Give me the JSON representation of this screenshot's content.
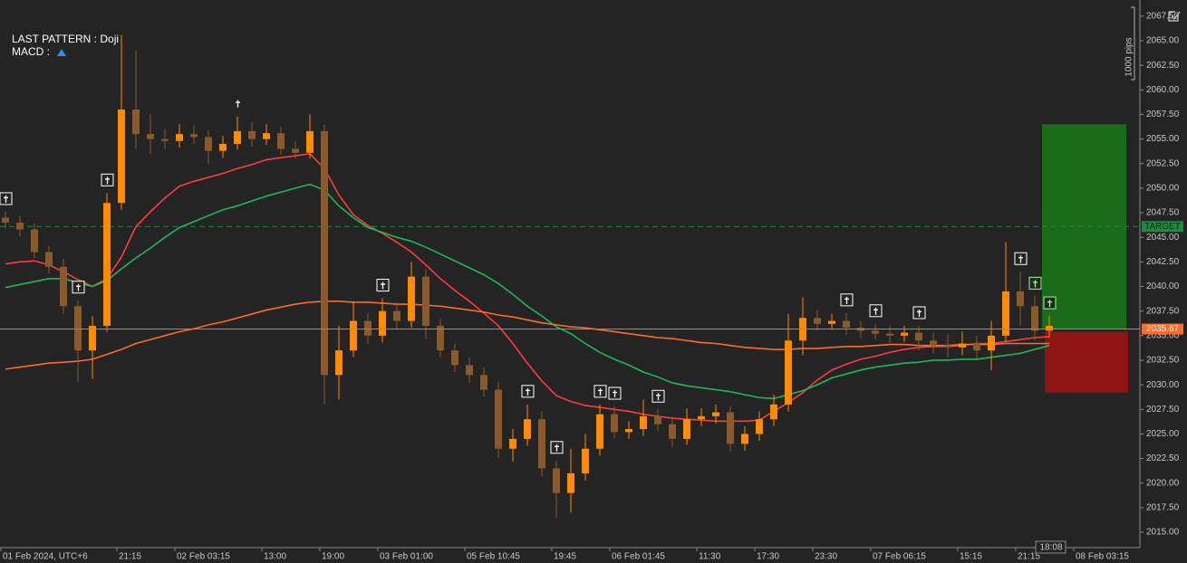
{
  "chart_data": {
    "type": "candlestick",
    "info_lines": [
      "LAST PATTERN : Doji",
      "MACD :"
    ],
    "scale_note": "1000 pips",
    "time_label": "18:08",
    "categories": [
      "01 Feb 2024, UTC+6",
      null,
      null,
      null,
      null,
      null,
      null,
      null,
      "21:15",
      null,
      null,
      null,
      "02 Feb 03:15",
      null,
      null,
      null,
      null,
      null,
      "13:00",
      null,
      null,
      null,
      "19:00",
      null,
      null,
      null,
      "03 Feb 01:00",
      null,
      null,
      null,
      null,
      null,
      "05 Feb 10:45",
      null,
      null,
      null,
      null,
      null,
      "19:45",
      null,
      null,
      null,
      "06 Feb 01:45",
      null,
      null,
      null,
      null,
      null,
      "11:30",
      null,
      null,
      null,
      "17:30",
      null,
      null,
      null,
      "23:30",
      null,
      null,
      null,
      "07 Feb 06:15",
      null,
      null,
      null,
      null,
      null,
      "15:15",
      null,
      null,
      null,
      "21:15",
      null,
      null,
      null,
      "08 Feb 03:15"
    ],
    "open": [
      2047.0,
      2046.5,
      2045.8,
      2043.5,
      2042.0,
      2038.0,
      2033.5,
      2036.0,
      2048.5,
      2058.0,
      2055.5,
      2055.0,
      2054.8,
      2055.5,
      2055.2,
      2053.8,
      2054.5,
      2055.8,
      2055.0,
      2055.6,
      2054.0,
      2053.6,
      2055.8,
      2031.0,
      2033.5,
      2036.5,
      2035.0,
      2037.5,
      2036.5,
      2041.0,
      2036.0,
      2033.5,
      2032.0,
      2031.0,
      2029.5,
      2023.5,
      2024.5,
      2026.5,
      2021.5,
      2019.0,
      2021.0,
      2023.5,
      2027.0,
      2025.2,
      2025.5,
      2026.8,
      2026.0,
      2024.5,
      2026.5,
      2026.8,
      2027.2,
      2024.0,
      2025.0,
      2026.5,
      2028.0,
      2034.5,
      2036.8,
      2036.2,
      2036.5,
      2035.8,
      2035.5,
      2035.2,
      2035.0,
      2035.3,
      2034.5,
      2034.0,
      2033.8,
      2034.2,
      2033.5,
      2035.0,
      2039.5,
      2038.0,
      2035.5,
      null,
      null
    ],
    "high": [
      2047.6,
      2047.2,
      2046.4,
      2044.1,
      2042.8,
      2038.6,
      2037.0,
      2049.5,
      2065.6,
      2064.0,
      2057.5,
      2056.0,
      2056.5,
      2056.4,
      2055.9,
      2055.3,
      2057.3,
      2056.7,
      2056.5,
      2056.2,
      2054.8,
      2057.5,
      2056.5,
      2036.0,
      2038.5,
      2037.3,
      2038.8,
      2038.4,
      2042.5,
      2041.8,
      2036.7,
      2034.2,
      2032.8,
      2031.8,
      2030.3,
      2025.5,
      2028.0,
      2027.3,
      2022.3,
      2023.5,
      2025.0,
      2028.0,
      2027.8,
      2026.3,
      2028.5,
      2027.5,
      2026.8,
      2027.6,
      2027.6,
      2028.0,
      2027.8,
      2025.8,
      2027.3,
      2029.0,
      2037.2,
      2038.9,
      2037.6,
      2037.2,
      2037.3,
      2036.5,
      2036.2,
      2036.0,
      2036.0,
      2036.0,
      2035.3,
      2035.2,
      2035.4,
      2035.0,
      2036.5,
      2044.5,
      2041.5,
      2039.0,
      2037.0,
      null,
      null
    ],
    "low": [
      2045.9,
      2045.1,
      2042.9,
      2041.3,
      2037.2,
      2030.3,
      2030.6,
      2035.4,
      2047.8,
      2054.0,
      2053.5,
      2054.0,
      2054.1,
      2054.5,
      2052.5,
      2053.1,
      2053.9,
      2054.3,
      2054.4,
      2053.4,
      2053.0,
      2053.0,
      2028.0,
      2028.5,
      2032.8,
      2034.2,
      2034.3,
      2035.7,
      2035.8,
      2034.6,
      2032.8,
      2031.3,
      2030.2,
      2028.8,
      2022.6,
      2022.2,
      2023.8,
      2020.7,
      2016.5,
      2017.0,
      2020.3,
      2022.8,
      2024.6,
      2024.5,
      2024.8,
      2025.3,
      2023.7,
      2023.9,
      2025.8,
      2026.1,
      2023.2,
      2023.3,
      2024.3,
      2025.8,
      2027.3,
      2033.0,
      2035.5,
      2035.6,
      2035.1,
      2034.8,
      2034.6,
      2034.3,
      2034.4,
      2033.5,
      2033.2,
      2032.8,
      2033.0,
      2032.5,
      2031.5,
      2034.3,
      2036.0,
      2034.5,
      2034.8,
      null,
      null
    ],
    "close": [
      2046.5,
      2045.8,
      2043.5,
      2042.0,
      2038.0,
      2033.5,
      2036.0,
      2048.5,
      2058.0,
      2055.5,
      2055.0,
      2054.8,
      2055.5,
      2055.2,
      2053.8,
      2054.5,
      2055.8,
      2055.0,
      2055.6,
      2054.0,
      2053.6,
      2055.8,
      2031.0,
      2033.5,
      2036.5,
      2035.0,
      2037.5,
      2036.5,
      2041.0,
      2036.0,
      2033.5,
      2032.0,
      2031.0,
      2029.5,
      2023.5,
      2024.5,
      2026.5,
      2021.5,
      2019.0,
      2021.0,
      2023.5,
      2027.0,
      2025.2,
      2025.5,
      2026.8,
      2026.0,
      2024.5,
      2026.5,
      2026.8,
      2027.2,
      2024.0,
      2025.0,
      2026.5,
      2028.0,
      2034.5,
      2036.8,
      2036.2,
      2036.5,
      2035.8,
      2035.5,
      2035.2,
      2035.0,
      2035.3,
      2034.5,
      2034.0,
      2033.8,
      2034.2,
      2033.5,
      2035.0,
      2039.5,
      2038.0,
      2035.5,
      2036.0,
      null,
      null
    ],
    "up_color": "#ff8c00",
    "down_color": "#8b5a2b",
    "moving_averages": [
      {
        "color": "#ff3b3b",
        "values": [
          2042.3,
          2042.5,
          2042.6,
          2042.2,
          2041.5,
          2040.7,
          2040.0,
          2040.8,
          2043.0,
          2046.1,
          2047.6,
          2049.0,
          2050.2,
          2050.7,
          2051.1,
          2051.5,
          2052.0,
          2052.4,
          2052.9,
          2053.1,
          2053.3,
          2053.5,
          2052.0,
          2049.3,
          2047.3,
          2046.2,
          2045.4,
          2044.5,
          2043.5,
          2042.2,
          2040.8,
          2039.6,
          2038.5,
          2037.3,
          2036.0,
          2034.2,
          2032.2,
          2030.4,
          2028.9,
          2028.3,
          2027.9,
          2027.7,
          2027.5,
          2027.3,
          2027.0,
          2026.8,
          2026.6,
          2026.5,
          2026.4,
          2026.3,
          2026.3,
          2026.3,
          2026.4,
          2027.3,
          2028.2,
          2029.2,
          2030.5,
          2031.5,
          2032.1,
          2032.6,
          2032.9,
          2033.3,
          2033.6,
          2033.8,
          2033.9,
          2033.9,
          2034.0,
          2034.2,
          2034.2,
          2034.4,
          2034.6,
          2034.8,
          2034.9,
          null,
          null
        ]
      },
      {
        "color": "#1db954",
        "values": [
          2039.9,
          2040.2,
          2040.5,
          2040.8,
          2040.8,
          2040.4,
          2040.0,
          2040.6,
          2041.8,
          2042.9,
          2043.9,
          2045.0,
          2046.0,
          2046.6,
          2047.2,
          2047.8,
          2048.2,
          2048.7,
          2049.2,
          2049.6,
          2050.0,
          2050.4,
          2049.8,
          2048.2,
          2047.0,
          2046.0,
          2045.5,
          2045.0,
          2044.6,
          2044.0,
          2043.3,
          2042.6,
          2041.9,
          2041.2,
          2040.3,
          2039.2,
          2038.0,
          2037.0,
          2035.9,
          2035.2,
          2034.2,
          2033.3,
          2032.6,
          2032.0,
          2031.3,
          2030.8,
          2030.2,
          2029.9,
          2029.7,
          2029.5,
          2029.3,
          2029.0,
          2028.7,
          2028.6,
          2029.0,
          2029.4,
          2030.0,
          2030.7,
          2031.1,
          2031.5,
          2031.8,
          2032.0,
          2032.2,
          2032.3,
          2032.5,
          2032.5,
          2032.6,
          2032.6,
          2032.8,
          2033.0,
          2033.2,
          2033.6,
          2034.0,
          null,
          null
        ]
      },
      {
        "color": "#ff6a2a",
        "values": [
          2031.6,
          2031.8,
          2032.0,
          2032.2,
          2032.3,
          2032.4,
          2032.6,
          2033.1,
          2033.6,
          2034.2,
          2034.6,
          2035.0,
          2035.4,
          2035.7,
          2036.1,
          2036.4,
          2036.8,
          2037.2,
          2037.6,
          2037.9,
          2038.2,
          2038.4,
          2038.5,
          2038.5,
          2038.4,
          2038.4,
          2038.3,
          2038.2,
          2038.2,
          2038.1,
          2038.0,
          2037.8,
          2037.6,
          2037.4,
          2037.1,
          2036.9,
          2036.6,
          2036.3,
          2036.1,
          2035.9,
          2035.8,
          2035.6,
          2035.4,
          2035.2,
          2035.0,
          2034.8,
          2034.7,
          2034.5,
          2034.3,
          2034.2,
          2034.0,
          2033.8,
          2033.7,
          2033.6,
          2033.6,
          2033.7,
          2033.7,
          2033.8,
          2033.9,
          2033.9,
          2034.0,
          2034.1,
          2034.1,
          2034.0,
          2034.0,
          2034.0,
          2034.1,
          2034.1,
          2034.1,
          2034.2,
          2034.2,
          2034.2,
          2034.2,
          null,
          null
        ]
      }
    ],
    "doji_candles": [
      0,
      5,
      7,
      26,
      36,
      38,
      41,
      42,
      45,
      58,
      60,
      63,
      70
    ],
    "recent_doji_candles": [
      71,
      72
    ],
    "plain_marker_candles": [
      16
    ],
    "last_price": {
      "value": 2035.67,
      "label": "2035.67"
    },
    "target": {
      "value": 2046.1,
      "label": "TARGET"
    },
    "take_profit": 2056.5,
    "stop_loss": 2029.2,
    "ylim": [
      2013.44,
      2069.14
    ],
    "yticks": [
      {
        "value": 2015,
        "label": "2015.00"
      },
      {
        "value": 2017.5,
        "label": "2017.50"
      },
      {
        "value": 2020,
        "label": "2020.00"
      },
      {
        "value": 2022.5,
        "label": "2022.50"
      },
      {
        "value": 2025,
        "label": "2025.00"
      },
      {
        "value": 2027.5,
        "label": "2027.50"
      },
      {
        "value": 2030,
        "label": "2030.00"
      },
      {
        "value": 2032.5,
        "label": "2032.50"
      },
      {
        "value": 2035,
        "label": "2035.00"
      },
      {
        "value": 2037.5,
        "label": "2037.50"
      },
      {
        "value": 2040,
        "label": "2040.00"
      },
      {
        "value": 2042.5,
        "label": "2042.50"
      },
      {
        "value": 2045,
        "label": "2045.00"
      },
      {
        "value": 2047.5,
        "label": "2047.50"
      },
      {
        "value": 2050,
        "label": "2050.00"
      },
      {
        "value": 2052.5,
        "label": "2052.50"
      },
      {
        "value": 2055,
        "label": "2055.00"
      },
      {
        "value": 2057.5,
        "label": "2057.50"
      },
      {
        "value": 2060,
        "label": "2060.00"
      },
      {
        "value": 2062.5,
        "label": "2062.50"
      },
      {
        "value": 2065,
        "label": "2065.00"
      },
      {
        "value": 2067.5,
        "label": "2067.50"
      }
    ]
  }
}
